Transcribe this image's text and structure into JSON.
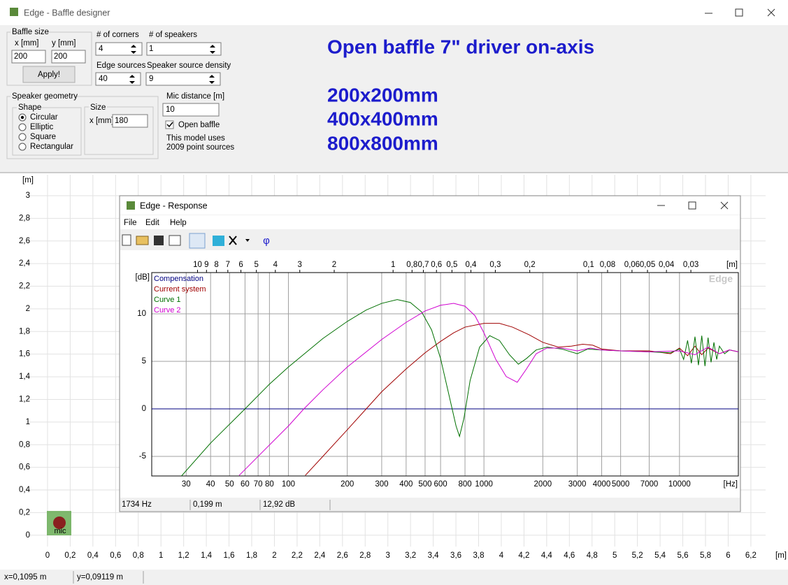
{
  "window": {
    "title": "Edge - Baffle designer",
    "status": [
      "x=0,1095 m",
      "y=0,09119 m"
    ]
  },
  "controls": {
    "baffle_size": {
      "label": "Baffle size",
      "x_label": "x [mm]",
      "y_label": "y [mm]",
      "x_value": "200",
      "y_value": "200",
      "apply": "Apply!"
    },
    "corners": {
      "label": "# of corners",
      "value": "4"
    },
    "speakers": {
      "label": "# of speakers",
      "value": "1"
    },
    "edge_sources": {
      "label": "Edge sources",
      "value": "40"
    },
    "source_density": {
      "label": "Speaker source density",
      "value": "9"
    },
    "geometry": {
      "label": "Speaker geometry",
      "shape_label": "Shape",
      "shapes": [
        "Circular",
        "Elliptic",
        "Square",
        "Rectangular"
      ],
      "size_label": "Size",
      "size_x_label": "x [mm]",
      "size_x_value": "180"
    },
    "mic": {
      "label": "Mic distance [m]",
      "value": "10",
      "open_baffle": "Open baffle",
      "info": [
        "This model uses",
        "2009 point sources"
      ]
    }
  },
  "annotation": {
    "title": "Open baffle 7\" driver on-axis",
    "lines": [
      "200x200mm",
      "400x400mm",
      "800x800mm"
    ]
  },
  "baffle_plot": {
    "xlabel": "[m]",
    "ylabel": "[m]",
    "mic_label": "mic",
    "xlim": [
      -0.2,
      6.33
    ],
    "ylim": [
      -0.1,
      3.18
    ],
    "xticks": [
      0,
      {
        "value": 0.2,
        "label": "0,2"
      },
      {
        "value": 0.4,
        "label": "0,4"
      },
      {
        "value": 0.6,
        "label": "0,6"
      },
      {
        "value": 0.8,
        "label": "0,8"
      },
      1,
      {
        "value": 1.2,
        "label": "1,2"
      },
      {
        "value": 1.4,
        "label": "1,4"
      },
      {
        "value": 1.6,
        "label": "1,6"
      },
      {
        "value": 1.8,
        "label": "1,8"
      },
      2,
      {
        "value": 2.2,
        "label": "2,2"
      },
      {
        "value": 2.4,
        "label": "2,4"
      },
      {
        "value": 2.6,
        "label": "2,6"
      },
      {
        "value": 2.8,
        "label": "2,8"
      },
      3,
      {
        "value": 3.2,
        "label": "3,2"
      },
      {
        "value": 3.4,
        "label": "3,4"
      },
      {
        "value": 3.6,
        "label": "3,6"
      },
      {
        "value": 3.8,
        "label": "3,8"
      },
      4,
      {
        "value": 4.2,
        "label": "4,2"
      },
      {
        "value": 4.4,
        "label": "4,4"
      },
      {
        "value": 4.6,
        "label": "4,6"
      },
      {
        "value": 4.8,
        "label": "4,8"
      },
      5,
      {
        "value": 5.2,
        "label": "5,2"
      },
      {
        "value": 5.4,
        "label": "5,4"
      },
      {
        "value": 5.6,
        "label": "5,6"
      },
      {
        "value": 5.8,
        "label": "5,8"
      },
      6,
      {
        "value": 6.2,
        "label": "6,2"
      }
    ],
    "yticks": [
      0,
      {
        "value": 0.2,
        "label": "0,2"
      },
      {
        "value": 0.4,
        "label": "0,4"
      },
      {
        "value": 0.6,
        "label": "0,6"
      },
      {
        "value": 0.8,
        "label": "0,8"
      },
      1,
      {
        "value": 1.2,
        "label": "1,2"
      },
      {
        "value": 1.4,
        "label": "1,4"
      },
      {
        "value": 1.6,
        "label": "1,6"
      },
      {
        "value": 1.8,
        "label": "1,8"
      },
      2,
      {
        "value": 2.2,
        "label": "2,2"
      },
      {
        "value": 2.4,
        "label": "2,4"
      },
      {
        "value": 2.6,
        "label": "2,6"
      },
      {
        "value": 2.8,
        "label": "2,8"
      },
      3
    ]
  },
  "response_window": {
    "title": "Edge - Response",
    "menu": [
      "File",
      "Edit",
      "Help"
    ],
    "phi": "φ",
    "status": [
      "1734 Hz",
      "0,199 m",
      "12,92 dB"
    ]
  },
  "chart_data": {
    "type": "line",
    "xscale": "log",
    "xlabel": "[Hz]",
    "ylabel": "[dB]",
    "x2label": "[m]",
    "watermark": "Edge",
    "grid": true,
    "xlim": [
      20,
      20000
    ],
    "ylim": [
      -7.06,
      14.34
    ],
    "xticks": [
      30,
      40,
      50,
      60,
      70,
      80,
      100,
      200,
      300,
      400,
      500,
      600,
      800,
      1000,
      2000,
      3000,
      4000,
      5000,
      7000,
      10000
    ],
    "yticks": [
      -5,
      0,
      5,
      10
    ],
    "x2lim": [
      17.15,
      0.01715
    ],
    "x2ticks": [
      10,
      9,
      8,
      7,
      6,
      5,
      4,
      3,
      2,
      1,
      {
        "value": 0.8,
        "label": "0,8"
      },
      {
        "value": 0.7,
        "label": "0,7"
      },
      {
        "value": 0.6,
        "label": "0,6"
      },
      {
        "value": 0.5,
        "label": "0,5"
      },
      {
        "value": 0.4,
        "label": "0,4"
      },
      {
        "value": 0.3,
        "label": "0,3"
      },
      {
        "value": 0.2,
        "label": "0,2"
      },
      {
        "value": 0.1,
        "label": "0,1"
      },
      {
        "value": 0.08,
        "label": "0,08"
      },
      {
        "value": 0.06,
        "label": "0,06"
      },
      {
        "value": 0.05,
        "label": "0,05"
      },
      {
        "value": 0.04,
        "label": "0,04"
      },
      {
        "value": 0.03,
        "label": "0,03"
      }
    ],
    "series": [
      {
        "name": "Compensation",
        "color": "#000080",
        "x": [
          20,
          20000
        ],
        "values": [
          0,
          0
        ]
      },
      {
        "name": "Current system",
        "color": "#a00000",
        "x": [
          122,
          150,
          200,
          250,
          300,
          400,
          500,
          600,
          700,
          800,
          1000,
          1200,
          1400,
          1700,
          2000,
          2400,
          2800,
          3200,
          3600,
          4000,
          5000,
          7000,
          9000,
          10000,
          11000,
          12000,
          13000,
          14000,
          16000,
          18000,
          20000
        ],
        "values": [
          -7.0,
          -5.0,
          -2.2,
          0,
          1.8,
          4.2,
          5.9,
          7.1,
          8.0,
          8.6,
          9.0,
          9.0,
          8.6,
          7.8,
          7.0,
          6.5,
          6.6,
          6.8,
          6.7,
          6.3,
          6.1,
          6.1,
          5.8,
          6.4,
          5.6,
          6.6,
          5.7,
          6.4,
          5.8,
          6.2,
          6.0
        ]
      },
      {
        "name": "Curve 1",
        "color": "#007000",
        "x": [
          28,
          40,
          60,
          80,
          100,
          150,
          200,
          250,
          300,
          360,
          420,
          480,
          540,
          600,
          660,
          720,
          750,
          790,
          850,
          950,
          1070,
          1200,
          1350,
          1500,
          1650,
          1850,
          2100,
          2500,
          3000,
          3400,
          4000,
          5000,
          7000,
          9000,
          10000,
          10500,
          11000,
          11500,
          12000,
          12500,
          13000,
          13500,
          14000,
          14500,
          15000,
          15500,
          16000,
          17000,
          18000,
          20000
        ],
        "values": [
          -7.2,
          -3.6,
          0,
          2.6,
          4.4,
          7.4,
          9.2,
          10.4,
          11.1,
          11.5,
          11.2,
          10.2,
          8.3,
          5.3,
          1.6,
          -1.8,
          -2.9,
          -1.0,
          3.0,
          6.5,
          7.7,
          7.2,
          5.7,
          4.7,
          5.3,
          6.2,
          6.5,
          6.3,
          5.8,
          6.3,
          6.2,
          6.1,
          6.0,
          5.9,
          6.3,
          5.2,
          7.2,
          4.8,
          7.6,
          4.6,
          7.7,
          4.5,
          7.5,
          4.9,
          7.0,
          5.2,
          6.6,
          5.8,
          6.2,
          6.0
        ]
      },
      {
        "name": "Curve 2",
        "color": "#d000d0",
        "x": [
          56,
          80,
          100,
          120,
          150,
          200,
          300,
          400,
          500,
          600,
          700,
          800,
          900,
          1000,
          1150,
          1300,
          1480,
          1650,
          1850,
          2100,
          2500,
          3000,
          3500,
          4000,
          5000,
          7000,
          10000,
          12000,
          14000,
          16000,
          18000,
          20000
        ],
        "values": [
          -7.0,
          -3.8,
          -1.8,
          0,
          2.0,
          4.4,
          7.3,
          9.1,
          10.3,
          10.9,
          11.1,
          10.8,
          9.8,
          8.0,
          5.2,
          3.4,
          2.8,
          4.2,
          5.8,
          6.4,
          6.4,
          6.1,
          6.4,
          6.2,
          6.1,
          6.0,
          6.1,
          5.7,
          6.5,
          5.8,
          6.2,
          6.0
        ]
      }
    ]
  }
}
